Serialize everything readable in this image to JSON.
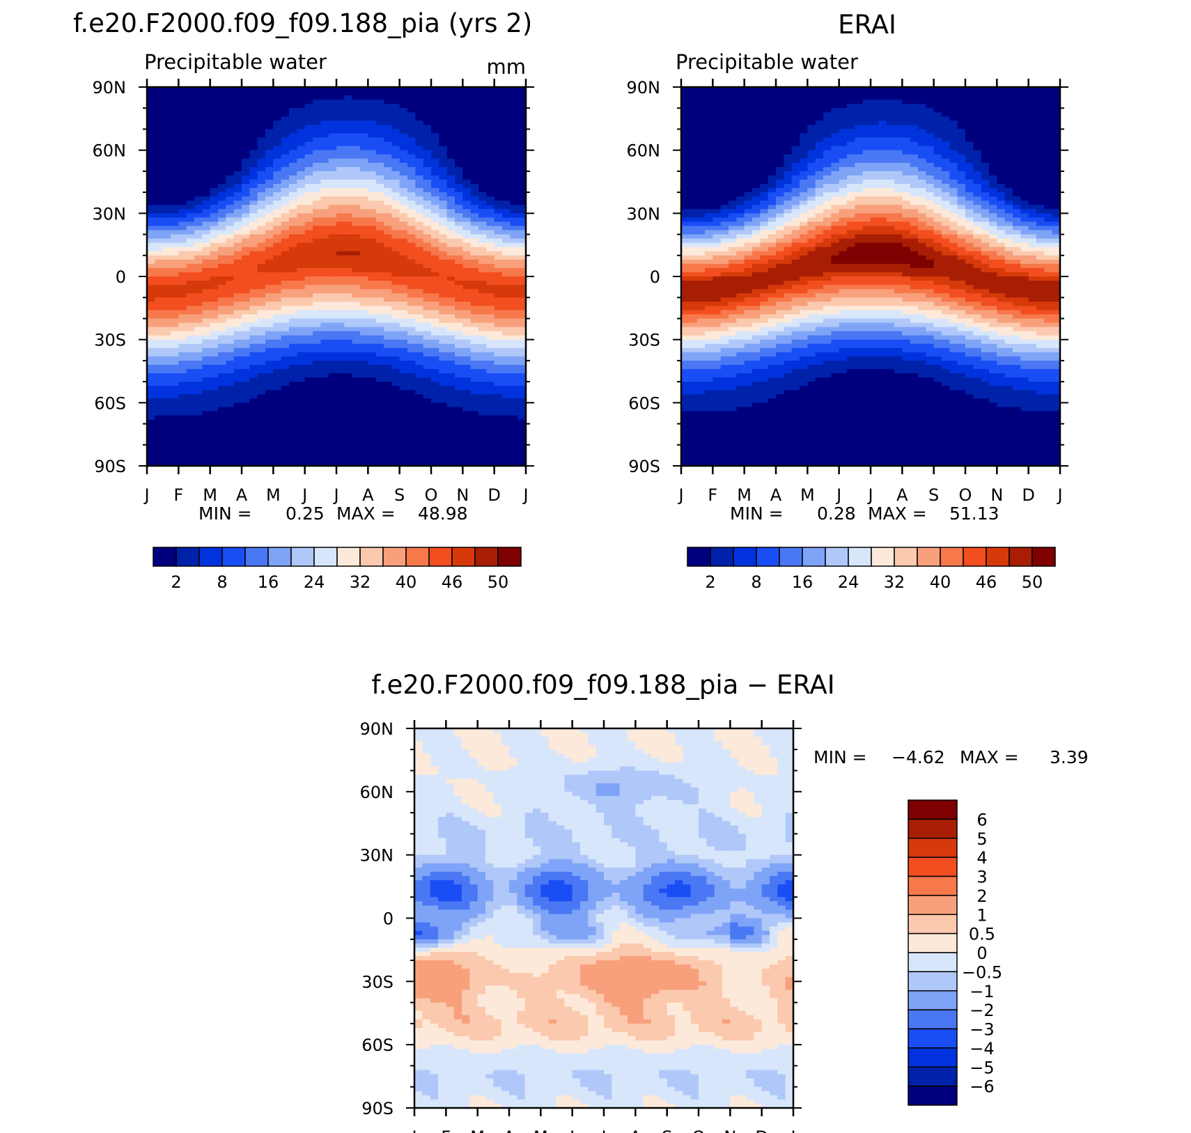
{
  "chart_data": [
    {
      "type": "heatmap",
      "title": "f.e20.F2000.f09_f09.188_pia (yrs 2)",
      "subtitle": "Precipitable water",
      "units": "mm",
      "x_ticks": [
        "J",
        "F",
        "M",
        "A",
        "M",
        "J",
        "J",
        "A",
        "S",
        "O",
        "N",
        "D",
        "J"
      ],
      "y_ticks": [
        "90N",
        "60N",
        "30N",
        "0",
        "30S",
        "60S",
        "90S"
      ],
      "y_values": [
        90,
        60,
        30,
        0,
        -30,
        -60,
        -90
      ],
      "xlim": [
        0,
        12
      ],
      "ylim": [
        -90,
        90
      ],
      "stats": {
        "min_label": "MIN =",
        "min": "0.25",
        "max_label": "MAX =",
        "max": "48.98"
      },
      "colorbar_labels": [
        "2",
        "8",
        "16",
        "24",
        "32",
        "40",
        "46",
        "50"
      ],
      "colors": [
        "#00007f",
        "#0022aa",
        "#0033dd",
        "#1a4ef5",
        "#4a78f4",
        "#7fa4f7",
        "#b0c8f9",
        "#d8e6fb",
        "#fde9d9",
        "#fbc9ae",
        "#f8a07c",
        "#f7784b",
        "#f24e1f",
        "#d63a0a",
        "#a81e05",
        "#7f0000"
      ],
      "thresholds": [
        2,
        5,
        8,
        12,
        16,
        20,
        24,
        28,
        32,
        36,
        40,
        43,
        46,
        48,
        50
      ],
      "field": {
        "amp": 46,
        "eq_shift": 8,
        "width": 34
      }
    },
    {
      "type": "heatmap",
      "title": "ERAI",
      "subtitle": "Precipitable water",
      "x_ticks": [
        "J",
        "F",
        "M",
        "A",
        "M",
        "J",
        "J",
        "A",
        "S",
        "O",
        "N",
        "D",
        "J"
      ],
      "y_ticks": [
        "90N",
        "60N",
        "30N",
        "0",
        "30S",
        "60S",
        "90S"
      ],
      "y_values": [
        90,
        60,
        30,
        0,
        -30,
        -60,
        -90
      ],
      "xlim": [
        0,
        12
      ],
      "ylim": [
        -90,
        90
      ],
      "stats": {
        "min_label": "MIN =",
        "min": "0.28",
        "max_label": "MAX =",
        "max": "51.13"
      },
      "colorbar_labels": [
        "2",
        "8",
        "16",
        "24",
        "32",
        "40",
        "46",
        "50"
      ],
      "colors": [
        "#00007f",
        "#0022aa",
        "#0033dd",
        "#1a4ef5",
        "#4a78f4",
        "#7fa4f7",
        "#b0c8f9",
        "#d8e6fb",
        "#fde9d9",
        "#fbc9ae",
        "#f8a07c",
        "#f7784b",
        "#f24e1f",
        "#d63a0a",
        "#a81e05",
        "#7f0000"
      ],
      "thresholds": [
        2,
        5,
        8,
        12,
        16,
        20,
        24,
        28,
        32,
        36,
        40,
        43,
        46,
        48,
        50
      ],
      "field": {
        "amp": 49,
        "eq_shift": 8,
        "width": 32
      }
    },
    {
      "type": "heatmap",
      "title": "f.e20.F2000.f09_f09.188_pia − ERAI",
      "x_ticks": [
        "J",
        "F",
        "M",
        "A",
        "M",
        "J",
        "J",
        "A",
        "S",
        "O",
        "N",
        "D",
        "J"
      ],
      "y_ticks": [
        "90N",
        "60N",
        "30N",
        "0",
        "30S",
        "60S",
        "90S"
      ],
      "y_values": [
        90,
        60,
        30,
        0,
        -30,
        -60,
        -90
      ],
      "xlim": [
        0,
        12
      ],
      "ylim": [
        -90,
        90
      ],
      "stats": {
        "min_label": "MIN =",
        "min": "−4.62",
        "max_label": "MAX =",
        "max": "3.39"
      },
      "colorbar_labels": [
        "6",
        "5",
        "4",
        "3",
        "2",
        "1",
        "0.5",
        "0",
        "−0.5",
        "−1",
        "−2",
        "−3",
        "−4",
        "−5",
        "−6"
      ],
      "colors": [
        "#7f0000",
        "#a81e05",
        "#d63a0a",
        "#f24e1f",
        "#f7784b",
        "#fbc9ae",
        "#fde9d9",
        "#d8e6fb",
        "#b0c8f9",
        "#7fa4f7",
        "#4a78f4",
        "#1a4ef5",
        "#0033dd",
        "#0022aa",
        "#00007f"
      ],
      "thresholds": [
        -6,
        -5,
        -4,
        -3,
        -2,
        -1,
        -0.5,
        0,
        0.5,
        1,
        2,
        3,
        4,
        5,
        6
      ],
      "diff_colors_low_to_high": [
        "#00007f",
        "#0022aa",
        "#0033dd",
        "#1a4ef5",
        "#4a78f4",
        "#7fa4f7",
        "#b0c8f9",
        "#d8e6fb",
        "#fde9d9",
        "#fbc9ae",
        "#f8a07c",
        "#f7784b",
        "#f24e1f",
        "#d63a0a",
        "#a81e05",
        "#7f0000"
      ]
    }
  ]
}
